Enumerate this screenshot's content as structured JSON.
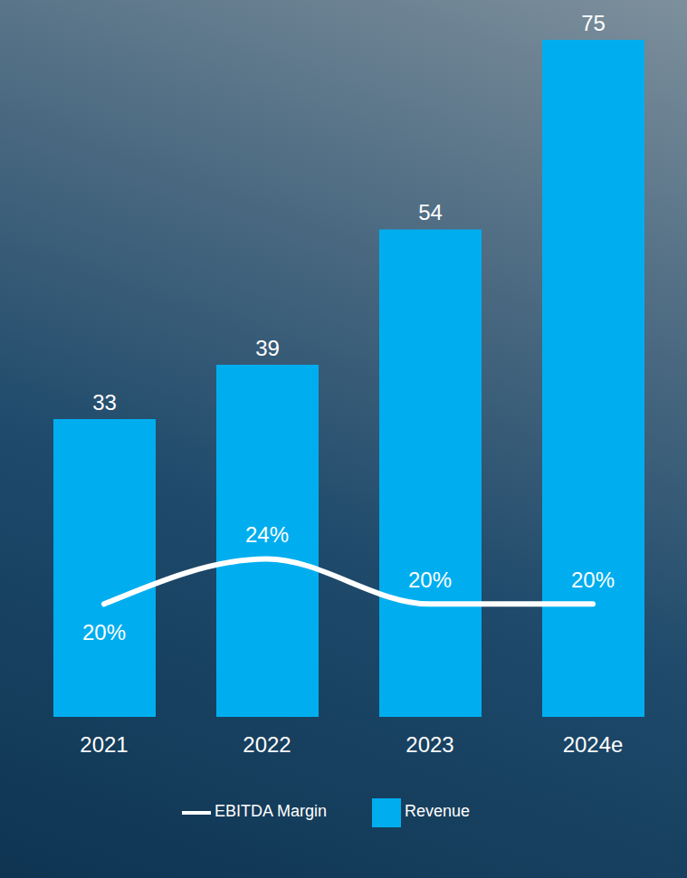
{
  "chart_data": {
    "type": "bar",
    "categories": [
      "2021",
      "2022",
      "2023",
      "2024e"
    ],
    "series": [
      {
        "name": "Revenue",
        "type": "bar",
        "color": "#00aeef",
        "values": [
          33,
          39,
          54,
          75
        ]
      },
      {
        "name": "EBITDA Margin",
        "type": "line",
        "color": "#ffffff",
        "axis": "y2",
        "values": [
          20,
          24,
          20,
          20
        ],
        "value_labels": [
          "20%",
          "24%",
          "20%",
          "20%"
        ]
      }
    ],
    "ylim": [
      0,
      75
    ],
    "y2lim": [
      10,
      70
    ],
    "data_labels": true,
    "tick_labels": false,
    "legend": "bottom",
    "grid": false
  }
}
